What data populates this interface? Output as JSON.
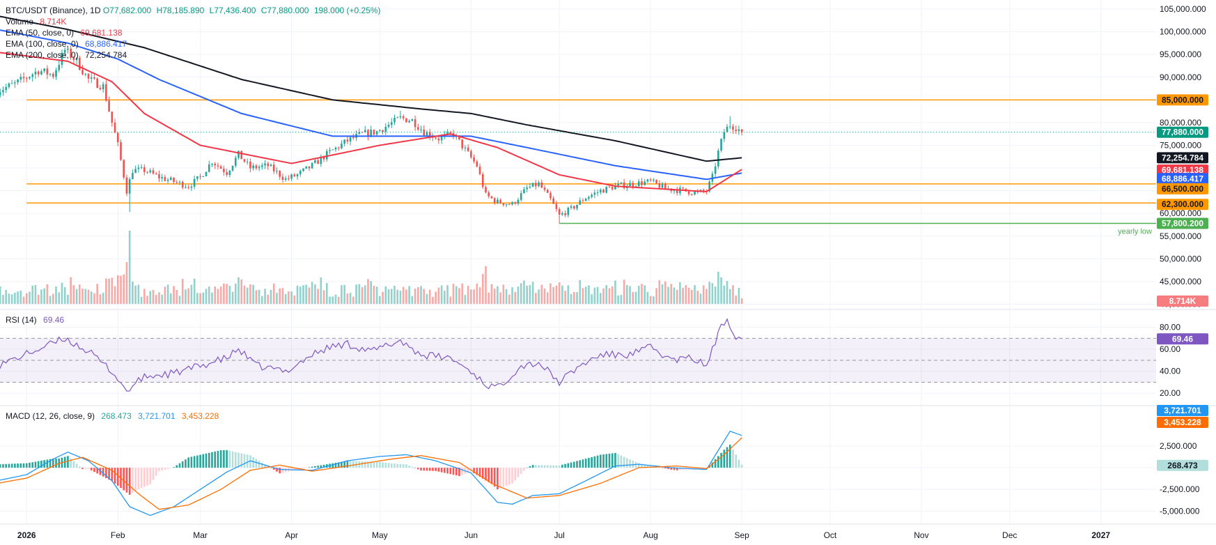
{
  "legend": {
    "symbol": "BTC/USDT (Binance), 1D",
    "open": "O77,682.000",
    "high": "H78,185.890",
    "low": "L77,436.400",
    "close": "C77,880.000",
    "change": "198.000 (+0.25%)",
    "volume_label": "Volume",
    "volume_value": "8.714K",
    "ema50_label": "EMA (50, close, 0)",
    "ema50_value": "69,681.138",
    "ema100_label": "EMA (100, close, 0)",
    "ema100_value": "68,886.417",
    "ema200_label": "EMA (200, close, 0)",
    "ema200_value": "72,254.784",
    "rsi_label": "RSI (14)",
    "rsi_value": "69.46",
    "macd_label": "MACD (12, 26, close, 9)",
    "macd_hist": "268.473",
    "macd_line": "3,721.701",
    "macd_signal": "3,453.228"
  },
  "colors": {
    "up": "#26a69a",
    "down": "#ef5350",
    "ema50": "#f23645",
    "ema100": "#2962ff",
    "ema200": "#131722",
    "orange": "#ff9800",
    "green_line": "#4caf50",
    "rsi": "#7e57c2",
    "macd": "#2196f3",
    "signal": "#ff6d00"
  },
  "chart_data": {
    "type": "candlestick",
    "x_tick_labels": [
      "2026",
      "Feb",
      "Mar",
      "Apr",
      "May",
      "Jun",
      "Jul",
      "Aug",
      "Sep",
      "Oct",
      "Nov",
      "Dec",
      "2027"
    ],
    "price_axis": {
      "ticks": [
        105000,
        100000,
        95000,
        90000,
        85000,
        80000,
        75000,
        70000,
        65000,
        60000,
        55000,
        50000,
        45000,
        40000
      ],
      "tick_labels": [
        "105,000.000",
        "100,000.000",
        "95,000.000",
        "90,000.000",
        "85,000.000",
        "80,000.000",
        "75,000.000",
        "70,000.000",
        "65,000.000",
        "60,000.000",
        "55,000.000",
        "50,000.000",
        "45,000.000",
        "40,000.000"
      ],
      "range": [
        39000,
        107000
      ]
    },
    "levels": [
      {
        "label": "85,000.000",
        "value": 85000,
        "color": "#ff9800",
        "start": "2026-01-01"
      },
      {
        "label": "66,500.000",
        "value": 66500,
        "color": "#ff9800",
        "start": "2026-01-01"
      },
      {
        "label": "62,300.000",
        "value": 62300,
        "color": "#ff9800",
        "start": "2026-01-01"
      },
      {
        "label": "57,800.200",
        "value": 57800.2,
        "color": "#4caf50",
        "start": "2026-07-01",
        "annotation": "yearly low"
      }
    ],
    "last_price_label": "77,880.000",
    "last_price": 77880,
    "ema_labels": [
      {
        "label": "72,254.784",
        "value": 72254.784,
        "color": "#131722"
      },
      {
        "label": "69,681.138",
        "value": 69681.138,
        "color": "#f23645"
      },
      {
        "label": "68,886.417",
        "value": 68886.417,
        "color": "#2962ff"
      }
    ],
    "price_keypoints": [
      [
        "2025-12-22",
        87000
      ],
      [
        "2025-12-28",
        88500
      ],
      [
        "2026-01-05",
        91500
      ],
      [
        "2026-01-10",
        90500
      ],
      [
        "2026-01-14",
        96000
      ],
      [
        "2026-01-18",
        93500
      ],
      [
        "2026-01-22",
        89500
      ],
      [
        "2026-01-27",
        88000
      ],
      [
        "2026-01-30",
        80000
      ],
      [
        "2026-02-01",
        75000
      ],
      [
        "2026-02-04",
        65000
      ],
      [
        "2026-02-06",
        69500
      ],
      [
        "2026-02-10",
        69500
      ],
      [
        "2026-02-15",
        68000
      ],
      [
        "2026-02-20",
        67000
      ],
      [
        "2026-02-25",
        66000
      ],
      [
        "2026-03-01",
        68000
      ],
      [
        "2026-03-05",
        71500
      ],
      [
        "2026-03-10",
        69000
      ],
      [
        "2026-03-14",
        73000
      ],
      [
        "2026-03-18",
        70000
      ],
      [
        "2026-03-24",
        70500
      ],
      [
        "2026-03-30",
        67500
      ],
      [
        "2026-04-03",
        68500
      ],
      [
        "2026-04-08",
        70500
      ],
      [
        "2026-04-14",
        73500
      ],
      [
        "2026-04-20",
        76000
      ],
      [
        "2026-04-25",
        77500
      ],
      [
        "2026-04-30",
        78000
      ],
      [
        "2026-05-04",
        79500
      ],
      [
        "2026-05-08",
        81000
      ],
      [
        "2026-05-12",
        80500
      ],
      [
        "2026-05-16",
        78000
      ],
      [
        "2026-05-21",
        76500
      ],
      [
        "2026-05-26",
        77500
      ],
      [
        "2026-05-30",
        74000
      ],
      [
        "2026-06-03",
        70500
      ],
      [
        "2026-06-06",
        64000
      ],
      [
        "2026-06-10",
        62500
      ],
      [
        "2026-06-15",
        62000
      ],
      [
        "2026-06-20",
        65500
      ],
      [
        "2026-06-24",
        66500
      ],
      [
        "2026-06-28",
        63000
      ],
      [
        "2026-07-01",
        59500
      ],
      [
        "2026-07-05",
        61000
      ],
      [
        "2026-07-10",
        63500
      ],
      [
        "2026-07-15",
        65000
      ],
      [
        "2026-07-20",
        66000
      ],
      [
        "2026-07-26",
        66500
      ],
      [
        "2026-08-01",
        67000
      ],
      [
        "2026-08-06",
        65500
      ],
      [
        "2026-08-12",
        65000
      ],
      [
        "2026-08-17",
        64500
      ],
      [
        "2026-08-20",
        65000
      ],
      [
        "2026-08-22",
        68000
      ],
      [
        "2026-08-24",
        73500
      ],
      [
        "2026-08-26",
        78000
      ],
      [
        "2026-08-28",
        79500
      ],
      [
        "2026-08-30",
        79000
      ],
      [
        "2026-09-01",
        77880
      ]
    ],
    "ema50": [
      [
        "2025-12-22",
        95500
      ],
      [
        "2026-01-15",
        93500
      ],
      [
        "2026-01-30",
        89000
      ],
      [
        "2026-02-10",
        82000
      ],
      [
        "2026-03-01",
        75000
      ],
      [
        "2026-04-01",
        71000
      ],
      [
        "2026-05-01",
        75000
      ],
      [
        "2026-05-25",
        77500
      ],
      [
        "2026-06-10",
        74500
      ],
      [
        "2026-07-01",
        68500
      ],
      [
        "2026-07-20",
        66000
      ],
      [
        "2026-08-20",
        64800
      ],
      [
        "2026-09-01",
        69681
      ]
    ],
    "ema100": [
      [
        "2025-12-22",
        100500
      ],
      [
        "2026-01-15",
        97500
      ],
      [
        "2026-02-01",
        94000
      ],
      [
        "2026-02-15",
        89500
      ],
      [
        "2026-03-15",
        82000
      ],
      [
        "2026-04-15",
        77000
      ],
      [
        "2026-05-15",
        77000
      ],
      [
        "2026-06-01",
        77000
      ],
      [
        "2026-06-20",
        74500
      ],
      [
        "2026-07-20",
        70500
      ],
      [
        "2026-08-20",
        67500
      ],
      [
        "2026-09-01",
        68886
      ]
    ],
    "ema200": [
      [
        "2025-12-22",
        103500
      ],
      [
        "2026-01-15",
        100500
      ],
      [
        "2026-02-10",
        96500
      ],
      [
        "2026-03-15",
        89500
      ],
      [
        "2026-04-15",
        85000
      ],
      [
        "2026-05-15",
        83000
      ],
      [
        "2026-06-01",
        82000
      ],
      [
        "2026-06-20",
        79500
      ],
      [
        "2026-07-20",
        76000
      ],
      [
        "2026-08-20",
        71500
      ],
      [
        "2026-09-01",
        72254
      ]
    ],
    "rsi": {
      "ticks": [
        80,
        60,
        40,
        20
      ],
      "tick_labels": [
        "80.00",
        "60.00",
        "40.00",
        "20.00"
      ],
      "bands": [
        70,
        50,
        30
      ],
      "range": [
        10,
        95
      ],
      "last_label": "69.46",
      "keypoints": [
        [
          "2025-12-22",
          45
        ],
        [
          "2026-01-05",
          60
        ],
        [
          "2026-01-14",
          70
        ],
        [
          "2026-01-22",
          58
        ],
        [
          "2026-01-30",
          40
        ],
        [
          "2026-02-04",
          22
        ],
        [
          "2026-02-10",
          35
        ],
        [
          "2026-02-20",
          38
        ],
        [
          "2026-03-01",
          45
        ],
        [
          "2026-03-10",
          52
        ],
        [
          "2026-03-14",
          60
        ],
        [
          "2026-03-20",
          45
        ],
        [
          "2026-03-30",
          40
        ],
        [
          "2026-04-08",
          55
        ],
        [
          "2026-04-14",
          62
        ],
        [
          "2026-04-20",
          65
        ],
        [
          "2026-04-28",
          58
        ],
        [
          "2026-05-08",
          68
        ],
        [
          "2026-05-15",
          55
        ],
        [
          "2026-05-25",
          52
        ],
        [
          "2026-06-01",
          40
        ],
        [
          "2026-06-06",
          28
        ],
        [
          "2026-06-10",
          25
        ],
        [
          "2026-06-18",
          45
        ],
        [
          "2026-06-24",
          48
        ],
        [
          "2026-07-01",
          30
        ],
        [
          "2026-07-08",
          45
        ],
        [
          "2026-07-15",
          55
        ],
        [
          "2026-07-25",
          55
        ],
        [
          "2026-08-01",
          62
        ],
        [
          "2026-08-08",
          50
        ],
        [
          "2026-08-15",
          52
        ],
        [
          "2026-08-20",
          45
        ],
        [
          "2026-08-22",
          60
        ],
        [
          "2026-08-25",
          80
        ],
        [
          "2026-08-27",
          88
        ],
        [
          "2026-08-30",
          72
        ],
        [
          "2026-09-01",
          69.46
        ]
      ]
    },
    "macd": {
      "ticks": [
        2500,
        -2500,
        -5000
      ],
      "tick_labels": [
        "2,500.000",
        "-2,500.000",
        "-5,000.000"
      ],
      "range": [
        -6500,
        7000
      ],
      "last_macd_label": "3,721.701",
      "last_signal_label": "3,453.228",
      "last_hist_label": "268.473",
      "macd_keypoints": [
        [
          "2025-12-22",
          -1500
        ],
        [
          "2026-01-01",
          -800
        ],
        [
          "2026-01-10",
          1000
        ],
        [
          "2026-01-15",
          1800
        ],
        [
          "2026-01-22",
          800
        ],
        [
          "2026-01-30",
          -1500
        ],
        [
          "2026-02-05",
          -4500
        ],
        [
          "2026-02-12",
          -5500
        ],
        [
          "2026-02-20",
          -4500
        ],
        [
          "2026-03-01",
          -2500
        ],
        [
          "2026-03-10",
          -500
        ],
        [
          "2026-03-18",
          800
        ],
        [
          "2026-03-28",
          -200
        ],
        [
          "2026-04-08",
          -300
        ],
        [
          "2026-04-20",
          800
        ],
        [
          "2026-05-01",
          1300
        ],
        [
          "2026-05-10",
          1500
        ],
        [
          "2026-05-20",
          800
        ],
        [
          "2026-06-01",
          -600
        ],
        [
          "2026-06-10",
          -4000
        ],
        [
          "2026-06-15",
          -4200
        ],
        [
          "2026-06-22",
          -3200
        ],
        [
          "2026-07-01",
          -3000
        ],
        [
          "2026-07-10",
          -1500
        ],
        [
          "2026-07-20",
          200
        ],
        [
          "2026-07-28",
          400
        ],
        [
          "2026-08-08",
          0
        ],
        [
          "2026-08-20",
          -200
        ],
        [
          "2026-08-24",
          2000
        ],
        [
          "2026-08-28",
          4200
        ],
        [
          "2026-09-01",
          3721.7
        ]
      ],
      "signal_keypoints": [
        [
          "2025-12-22",
          -1800
        ],
        [
          "2026-01-01",
          -1200
        ],
        [
          "2026-01-12",
          500
        ],
        [
          "2026-01-20",
          1200
        ],
        [
          "2026-01-30",
          -300
        ],
        [
          "2026-02-08",
          -3000
        ],
        [
          "2026-02-15",
          -4800
        ],
        [
          "2026-02-25",
          -4300
        ],
        [
          "2026-03-08",
          -2500
        ],
        [
          "2026-03-18",
          -300
        ],
        [
          "2026-03-28",
          300
        ],
        [
          "2026-04-08",
          -400
        ],
        [
          "2026-04-20",
          200
        ],
        [
          "2026-05-05",
          1000
        ],
        [
          "2026-05-15",
          1400
        ],
        [
          "2026-05-28",
          600
        ],
        [
          "2026-06-08",
          -1800
        ],
        [
          "2026-06-20",
          -3500
        ],
        [
          "2026-07-01",
          -3200
        ],
        [
          "2026-07-15",
          -1800
        ],
        [
          "2026-07-28",
          0
        ],
        [
          "2026-08-10",
          200
        ],
        [
          "2026-08-20",
          -100
        ],
        [
          "2026-08-26",
          1500
        ],
        [
          "2026-09-01",
          3453.2
        ]
      ]
    }
  }
}
